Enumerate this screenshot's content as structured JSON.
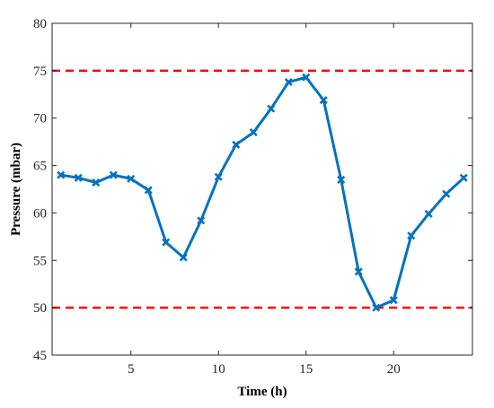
{
  "chart_data": {
    "type": "line",
    "xlabel": "Time (h)",
    "ylabel": "Pressure (mbar)",
    "xlim": [
      0.5,
      24.5
    ],
    "ylim": [
      45,
      80
    ],
    "xticks": [
      5,
      10,
      15,
      20
    ],
    "yticks": [
      45,
      50,
      55,
      60,
      65,
      70,
      75,
      80
    ],
    "grid": false,
    "legend": "none",
    "series": [
      {
        "color": "#0072BD",
        "marker": "x",
        "x": [
          1,
          2,
          3,
          4,
          5,
          6,
          7,
          8,
          9,
          10,
          11,
          12,
          13,
          14,
          15,
          16,
          17,
          18,
          19,
          20,
          21,
          22,
          23,
          24
        ],
        "values": [
          64.0,
          63.7,
          63.2,
          64.0,
          63.6,
          62.4,
          56.9,
          55.3,
          59.2,
          63.8,
          67.2,
          68.5,
          71.0,
          73.8,
          74.3,
          71.9,
          63.5,
          53.8,
          50.0,
          50.8,
          57.6,
          59.9,
          62.0,
          63.7
        ]
      }
    ],
    "reference_lines": [
      {
        "axis": "y",
        "value": 75,
        "color": "#FF0000",
        "style": "dashed"
      },
      {
        "axis": "y",
        "value": 50,
        "color": "#FF0000",
        "style": "dashed"
      }
    ]
  }
}
